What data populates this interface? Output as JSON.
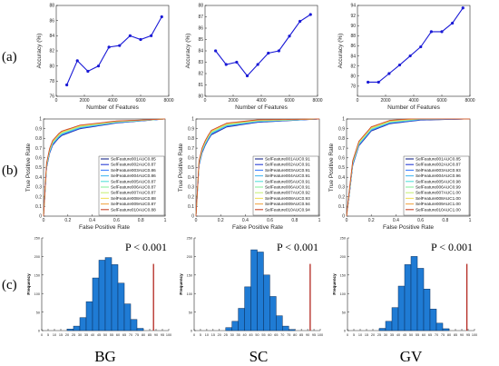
{
  "row_labels": [
    "(a)",
    "(b)",
    "(c)"
  ],
  "condition_labels": [
    "BG",
    "SC",
    "GV"
  ],
  "colors": {
    "accuracy_line": "#1a1ad6",
    "histogram_bar": "#1f7bd4",
    "histogram_edge": "#0b2f5c",
    "observed_line": "#b3261e",
    "axis": "#262626"
  },
  "roc_series_colors": [
    "#1c2a8a",
    "#2a3fd6",
    "#3f7fff",
    "#4bbcf2",
    "#55e0d8",
    "#8cf0a0",
    "#c8f07a",
    "#f2e060",
    "#f2a84a",
    "#c8452a"
  ],
  "chart_data": [
    {
      "type": "line",
      "panel": "a-BG",
      "xlabel": "Number of Features",
      "ylabel": "Accuracy (%)",
      "xlim": [
        0,
        8000
      ],
      "ylim": [
        76,
        88
      ],
      "xticks": [
        "0",
        "2000",
        "4000",
        "6000",
        "8000"
      ],
      "yticks": [
        "76",
        "78",
        "80",
        "82",
        "84",
        "86",
        "88"
      ],
      "x": [
        750,
        1500,
        2250,
        3000,
        3750,
        4500,
        5250,
        6000,
        6750,
        7500
      ],
      "values": [
        77.5,
        80.7,
        79.3,
        80.0,
        82.5,
        82.7,
        84.0,
        83.5,
        84.0,
        86.5
      ]
    },
    {
      "type": "line",
      "panel": "a-SC",
      "xlabel": "Number of Features",
      "ylabel": "Accuracy (%)",
      "xlim": [
        0,
        8000
      ],
      "ylim": [
        80,
        88
      ],
      "xticks": [
        "0",
        "2000",
        "4000",
        "6000",
        "8000"
      ],
      "yticks": [
        "80",
        "81",
        "82",
        "83",
        "84",
        "85",
        "86",
        "87",
        "88"
      ],
      "x": [
        750,
        1500,
        2250,
        3000,
        3750,
        4500,
        5250,
        6000,
        6750,
        7500
      ],
      "values": [
        84.0,
        82.8,
        83.0,
        81.8,
        82.8,
        83.8,
        84.0,
        85.3,
        86.6,
        87.2
      ]
    },
    {
      "type": "line",
      "panel": "a-GV",
      "xlabel": "Number of Features",
      "ylabel": "Accuracy (%)",
      "xlim": [
        0,
        8000
      ],
      "ylim": [
        76,
        94
      ],
      "xticks": [
        "0",
        "2000",
        "4000",
        "6000",
        "8000"
      ],
      "yticks": [
        "78",
        "80",
        "82",
        "84",
        "86",
        "88",
        "90",
        "92",
        "94"
      ],
      "x": [
        750,
        1500,
        2250,
        3000,
        3750,
        4500,
        5250,
        6000,
        6750,
        7500
      ],
      "values": [
        78.8,
        78.8,
        80.5,
        82.2,
        84.0,
        85.8,
        88.8,
        88.8,
        90.5,
        93.5
      ]
    },
    {
      "type": "line",
      "panel": "b-BG",
      "subtype": "roc",
      "xlabel": "False Positive Rate",
      "ylabel": "True Positive Rate",
      "xlim": [
        0,
        1
      ],
      "ylim": [
        0,
        1
      ],
      "xticks": [
        "0",
        "0.2",
        "0.4",
        "0.6",
        "0.8",
        "1"
      ],
      "yticks": [
        "0",
        "0.1",
        "0.2",
        "0.3",
        "0.4",
        "0.5",
        "0.6",
        "0.7",
        "0.8",
        "0.9",
        "1"
      ],
      "legend_position": "bottom-right",
      "legend": [
        "SelFeature001AUC0.85",
        "SelFeature002AUC0.87",
        "SelFeature003AUC0.86",
        "SelFeature004AUC0.86",
        "SelFeature005AUC0.87",
        "SelFeature006AUC0.87",
        "SelFeature007AUC0.87",
        "SelFeature008AUC0.88",
        "SelFeature009AUC0.87",
        "SelFeature010AUC0.88"
      ],
      "curve_knots": [
        [
          0,
          0
        ],
        [
          0.01,
          0.3
        ],
        [
          0.03,
          0.6
        ],
        [
          0.07,
          0.75
        ],
        [
          0.14,
          0.85
        ],
        [
          0.3,
          0.92
        ],
        [
          0.6,
          0.97
        ],
        [
          1,
          1
        ]
      ]
    },
    {
      "type": "line",
      "panel": "b-SC",
      "subtype": "roc",
      "xlabel": "False Positive Rate",
      "ylabel": "True Positive Rate",
      "xlim": [
        0,
        1
      ],
      "ylim": [
        0,
        1
      ],
      "xticks": [
        "0",
        "0.2",
        "0.4",
        "0.6",
        "0.8",
        "1"
      ],
      "yticks": [
        "0",
        "0.1",
        "0.2",
        "0.3",
        "0.4",
        "0.5",
        "0.6",
        "0.7",
        "0.8",
        "0.9",
        "1"
      ],
      "legend_position": "bottom-right",
      "legend": [
        "SelFeature001AUC0.91",
        "SelFeature002AUC0.91",
        "SelFeature003AUC0.91",
        "SelFeature004AUC0.91",
        "SelFeature005AUC0.91",
        "SelFeature006AUC0.91",
        "SelFeature007AUC0.92",
        "SelFeature008AUC0.93",
        "SelFeature009AUC0.94",
        "SelFeature010AUC0.94"
      ],
      "curve_knots": [
        [
          0,
          0
        ],
        [
          0.01,
          0.4
        ],
        [
          0.03,
          0.6
        ],
        [
          0.06,
          0.72
        ],
        [
          0.12,
          0.86
        ],
        [
          0.25,
          0.94
        ],
        [
          0.5,
          0.98
        ],
        [
          1,
          1
        ]
      ]
    },
    {
      "type": "line",
      "panel": "b-GV",
      "subtype": "roc",
      "xlabel": "False Positive Rate",
      "ylabel": "True Positive Rate",
      "xlim": [
        0,
        1
      ],
      "ylim": [
        0,
        1
      ],
      "xticks": [
        "0",
        "0.2",
        "0.4",
        "0.6",
        "0.8",
        "1"
      ],
      "yticks": [
        "0",
        "0.1",
        "0.2",
        "0.3",
        "0.4",
        "0.5",
        "0.6",
        "0.7",
        "0.8",
        "0.9",
        "1"
      ],
      "legend_position": "bottom-right",
      "legend": [
        "SelFeature001AUC0.85",
        "SelFeature002AUC0.87",
        "SelFeature003AUC0.93",
        "SelFeature004AUC0.96",
        "SelFeature005AUC0.98",
        "SelFeature006AUC0.99",
        "SelFeature007AUC1.00",
        "SelFeature008AUC1.00",
        "SelFeature009AUC1.00",
        "SelFeature010AUC1.00"
      ],
      "curve_knots": [
        [
          0,
          0
        ],
        [
          0.02,
          0.22
        ],
        [
          0.05,
          0.55
        ],
        [
          0.1,
          0.75
        ],
        [
          0.2,
          0.9
        ],
        [
          0.35,
          0.97
        ],
        [
          0.6,
          1
        ],
        [
          1,
          1
        ]
      ]
    },
    {
      "type": "bar",
      "panel": "c-BG",
      "subtype": "histogram",
      "ylabel": "Frequency",
      "annotation": "P < 0.001",
      "xlim": [
        0,
        100
      ],
      "ylim": [
        0,
        250
      ],
      "bin_width": 5,
      "xticks": [
        "0",
        "5",
        "10",
        "15",
        "20",
        "25",
        "30",
        "35",
        "40",
        "45",
        "50",
        "55",
        "60",
        "65",
        "70",
        "75",
        "80",
        "85",
        "90",
        "95",
        "100"
      ],
      "yticks": [
        "0",
        "50",
        "100",
        "150",
        "200",
        "250"
      ],
      "bin_starts": [
        20,
        25,
        30,
        35,
        40,
        45,
        50,
        55,
        60,
        65,
        70,
        75
      ],
      "values": [
        4,
        12,
        35,
        78,
        142,
        190,
        197,
        178,
        128,
        72,
        30,
        6
      ],
      "observed_value": 88
    },
    {
      "type": "bar",
      "panel": "c-SC",
      "subtype": "histogram",
      "ylabel": "Frequency",
      "annotation": "P < 0.001",
      "xlim": [
        0,
        100
      ],
      "ylim": [
        0,
        250
      ],
      "bin_width": 5,
      "xticks": [
        "0",
        "5",
        "10",
        "15",
        "20",
        "25",
        "30",
        "35",
        "40",
        "45",
        "50",
        "55",
        "60",
        "65",
        "70",
        "75",
        "80",
        "85",
        "90",
        "95",
        "100"
      ],
      "yticks": [
        "0",
        "50",
        "100",
        "150",
        "200",
        "250"
      ],
      "bin_starts": [
        25,
        30,
        35,
        40,
        45,
        50,
        55,
        60,
        65,
        70,
        75
      ],
      "values": [
        8,
        25,
        60,
        118,
        218,
        212,
        150,
        92,
        40,
        12,
        3
      ],
      "observed_value": 92
    },
    {
      "type": "bar",
      "panel": "c-GV",
      "subtype": "histogram",
      "ylabel": "Frequency",
      "annotation": "P < 0.001",
      "xlim": [
        0,
        100
      ],
      "ylim": [
        0,
        250
      ],
      "bin_width": 5,
      "xticks": [
        "0",
        "5",
        "10",
        "15",
        "20",
        "25",
        "30",
        "35",
        "40",
        "45",
        "50",
        "55",
        "60",
        "65",
        "70",
        "75",
        "80",
        "85",
        "90",
        "95",
        "100"
      ],
      "yticks": [
        "0",
        "50",
        "100",
        "150",
        "200",
        "250"
      ],
      "bin_starts": [
        25,
        30,
        35,
        40,
        45,
        50,
        55,
        60,
        65,
        70,
        75
      ],
      "values": [
        6,
        25,
        62,
        120,
        178,
        200,
        168,
        112,
        58,
        20,
        5
      ],
      "observed_value": 94
    }
  ]
}
